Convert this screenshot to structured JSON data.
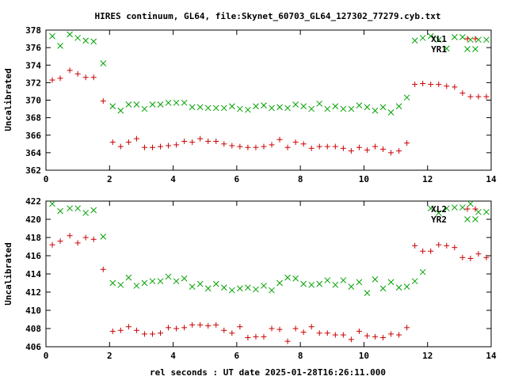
{
  "title": "HIRES continuum, GL64, file:Skynet_60703_GL64_127302_77279.cyb.txt",
  "xlabel": "rel seconds : UT date 2025-01-28T16:26:11.000",
  "colors": {
    "red_series": "#cc0000",
    "green_series": "#00a000",
    "axes": "#000000"
  },
  "chart_data": [
    {
      "type": "scatter",
      "ylabel": "Uncalibrated",
      "xlim": [
        0,
        14
      ],
      "ylim": [
        362,
        378
      ],
      "xticks": [
        "0",
        "2",
        "4",
        "6",
        "8",
        "10",
        "12",
        "14"
      ],
      "yticks": [
        "362",
        "364",
        "366",
        "368",
        "370",
        "372",
        "374",
        "376",
        "378"
      ],
      "legend_position": "top-right",
      "series": [
        {
          "name": "XL1",
          "marker": "+",
          "color": "#cc0000",
          "x": [
            0.2,
            0.45,
            0.75,
            1.0,
            1.25,
            1.5,
            1.8,
            2.1,
            2.35,
            2.6,
            2.85,
            3.1,
            3.35,
            3.6,
            3.85,
            4.1,
            4.35,
            4.6,
            4.85,
            5.1,
            5.35,
            5.6,
            5.85,
            6.1,
            6.35,
            6.6,
            6.85,
            7.1,
            7.35,
            7.6,
            7.85,
            8.1,
            8.35,
            8.6,
            8.85,
            9.1,
            9.35,
            9.6,
            9.85,
            10.1,
            10.35,
            10.6,
            10.85,
            11.1,
            11.35,
            11.6,
            11.85,
            12.1,
            12.35,
            12.6,
            12.85,
            13.1,
            13.35,
            13.6,
            13.85
          ],
          "y": [
            372.3,
            372.5,
            373.4,
            373.0,
            372.6,
            372.6,
            369.9,
            365.2,
            364.7,
            365.2,
            365.6,
            364.6,
            364.6,
            364.7,
            364.8,
            364.9,
            365.3,
            365.2,
            365.6,
            365.3,
            365.3,
            365.0,
            364.8,
            364.7,
            364.6,
            364.6,
            364.7,
            364.9,
            365.5,
            364.6,
            365.2,
            365.0,
            364.5,
            364.7,
            364.7,
            364.7,
            364.5,
            364.2,
            364.6,
            364.3,
            364.7,
            364.4,
            364.0,
            364.2,
            365.1,
            371.8,
            371.9,
            371.8,
            371.8,
            371.6,
            371.5,
            370.8,
            370.4,
            370.4,
            370.4
          ]
        },
        {
          "name": "YR1",
          "marker": "x",
          "color": "#00a000",
          "x": [
            0.2,
            0.45,
            0.75,
            1.0,
            1.25,
            1.5,
            1.8,
            2.1,
            2.35,
            2.6,
            2.85,
            3.1,
            3.35,
            3.6,
            3.85,
            4.1,
            4.35,
            4.6,
            4.85,
            5.1,
            5.35,
            5.6,
            5.85,
            6.1,
            6.35,
            6.6,
            6.85,
            7.1,
            7.35,
            7.6,
            7.85,
            8.1,
            8.35,
            8.6,
            8.85,
            9.1,
            9.35,
            9.6,
            9.85,
            10.1,
            10.35,
            10.6,
            10.85,
            11.1,
            11.35,
            11.6,
            11.85,
            12.1,
            12.35,
            12.6,
            12.85,
            13.1,
            13.35,
            13.6,
            13.85
          ],
          "y": [
            377.3,
            376.2,
            377.5,
            377.1,
            376.8,
            376.7,
            374.2,
            369.3,
            368.8,
            369.5,
            369.5,
            369.0,
            369.5,
            369.5,
            369.7,
            369.7,
            369.7,
            369.2,
            369.2,
            369.1,
            369.1,
            369.1,
            369.3,
            369.0,
            368.9,
            369.3,
            369.4,
            369.1,
            369.2,
            369.1,
            369.5,
            369.3,
            369.0,
            369.6,
            369.0,
            369.3,
            369.0,
            369.0,
            369.4,
            369.2,
            368.8,
            369.2,
            368.6,
            369.3,
            370.3,
            376.8,
            377.1,
            377.3,
            376.9,
            375.9,
            377.2,
            377.2,
            376.9,
            376.9,
            376.9
          ]
        }
      ]
    },
    {
      "type": "scatter",
      "ylabel": "Uncalibrated",
      "xlim": [
        0,
        14
      ],
      "ylim": [
        406,
        422
      ],
      "xticks": [
        "0",
        "2",
        "4",
        "6",
        "8",
        "10",
        "12",
        "14"
      ],
      "yticks": [
        "406",
        "408",
        "410",
        "412",
        "414",
        "416",
        "418",
        "420",
        "422"
      ],
      "legend_position": "top-right",
      "series": [
        {
          "name": "XL2",
          "marker": "+",
          "color": "#cc0000",
          "x": [
            0.2,
            0.45,
            0.75,
            1.0,
            1.25,
            1.5,
            1.8,
            2.1,
            2.35,
            2.6,
            2.85,
            3.1,
            3.35,
            3.6,
            3.85,
            4.1,
            4.35,
            4.6,
            4.85,
            5.1,
            5.35,
            5.6,
            5.85,
            6.1,
            6.35,
            6.6,
            6.85,
            7.1,
            7.35,
            7.6,
            7.85,
            8.1,
            8.35,
            8.6,
            8.85,
            9.1,
            9.35,
            9.6,
            9.85,
            10.1,
            10.35,
            10.6,
            10.85,
            11.1,
            11.35,
            11.6,
            11.85,
            12.1,
            12.35,
            12.6,
            12.85,
            13.1,
            13.35,
            13.6,
            13.85
          ],
          "y": [
            417.2,
            417.6,
            418.2,
            417.4,
            418.0,
            417.8,
            414.5,
            407.7,
            407.8,
            408.2,
            407.8,
            407.4,
            407.4,
            407.5,
            408.1,
            408.0,
            408.1,
            408.4,
            408.4,
            408.3,
            408.4,
            407.8,
            407.5,
            408.2,
            407.0,
            407.1,
            407.1,
            408.0,
            407.9,
            406.6,
            408.0,
            407.6,
            408.2,
            407.5,
            407.5,
            407.3,
            407.3,
            406.8,
            407.7,
            407.2,
            407.1,
            407.0,
            407.4,
            407.3,
            408.1,
            417.1,
            416.5,
            416.5,
            417.2,
            417.1,
            416.9,
            415.8,
            415.7,
            416.2,
            415.8
          ]
        },
        {
          "name": "YR2",
          "marker": "x",
          "color": "#00a000",
          "x": [
            0.2,
            0.45,
            0.75,
            1.0,
            1.25,
            1.5,
            1.8,
            2.1,
            2.35,
            2.6,
            2.85,
            3.1,
            3.35,
            3.6,
            3.85,
            4.1,
            4.35,
            4.6,
            4.85,
            5.1,
            5.35,
            5.6,
            5.85,
            6.1,
            6.35,
            6.6,
            6.85,
            7.1,
            7.35,
            7.6,
            7.85,
            8.1,
            8.35,
            8.6,
            8.85,
            9.1,
            9.35,
            9.6,
            9.85,
            10.1,
            10.35,
            10.6,
            10.85,
            11.1,
            11.35,
            11.6,
            11.85,
            12.1,
            12.35,
            12.6,
            12.85,
            13.1,
            13.35,
            13.6,
            13.85
          ],
          "y": [
            421.7,
            420.9,
            421.2,
            421.2,
            420.7,
            421.0,
            418.1,
            413.0,
            412.8,
            413.6,
            412.7,
            413.0,
            413.2,
            413.2,
            413.7,
            413.2,
            413.5,
            412.6,
            412.9,
            412.4,
            412.9,
            412.5,
            412.2,
            412.4,
            412.5,
            412.3,
            412.7,
            412.2,
            413.0,
            413.6,
            413.5,
            412.9,
            412.8,
            412.9,
            413.3,
            412.8,
            413.3,
            412.6,
            413.1,
            411.9,
            413.4,
            412.4,
            413.1,
            412.5,
            412.6,
            413.2,
            414.2,
            421.2,
            420.7,
            421.2,
            421.3,
            421.3,
            421.7,
            420.8,
            420.8
          ]
        }
      ]
    }
  ]
}
